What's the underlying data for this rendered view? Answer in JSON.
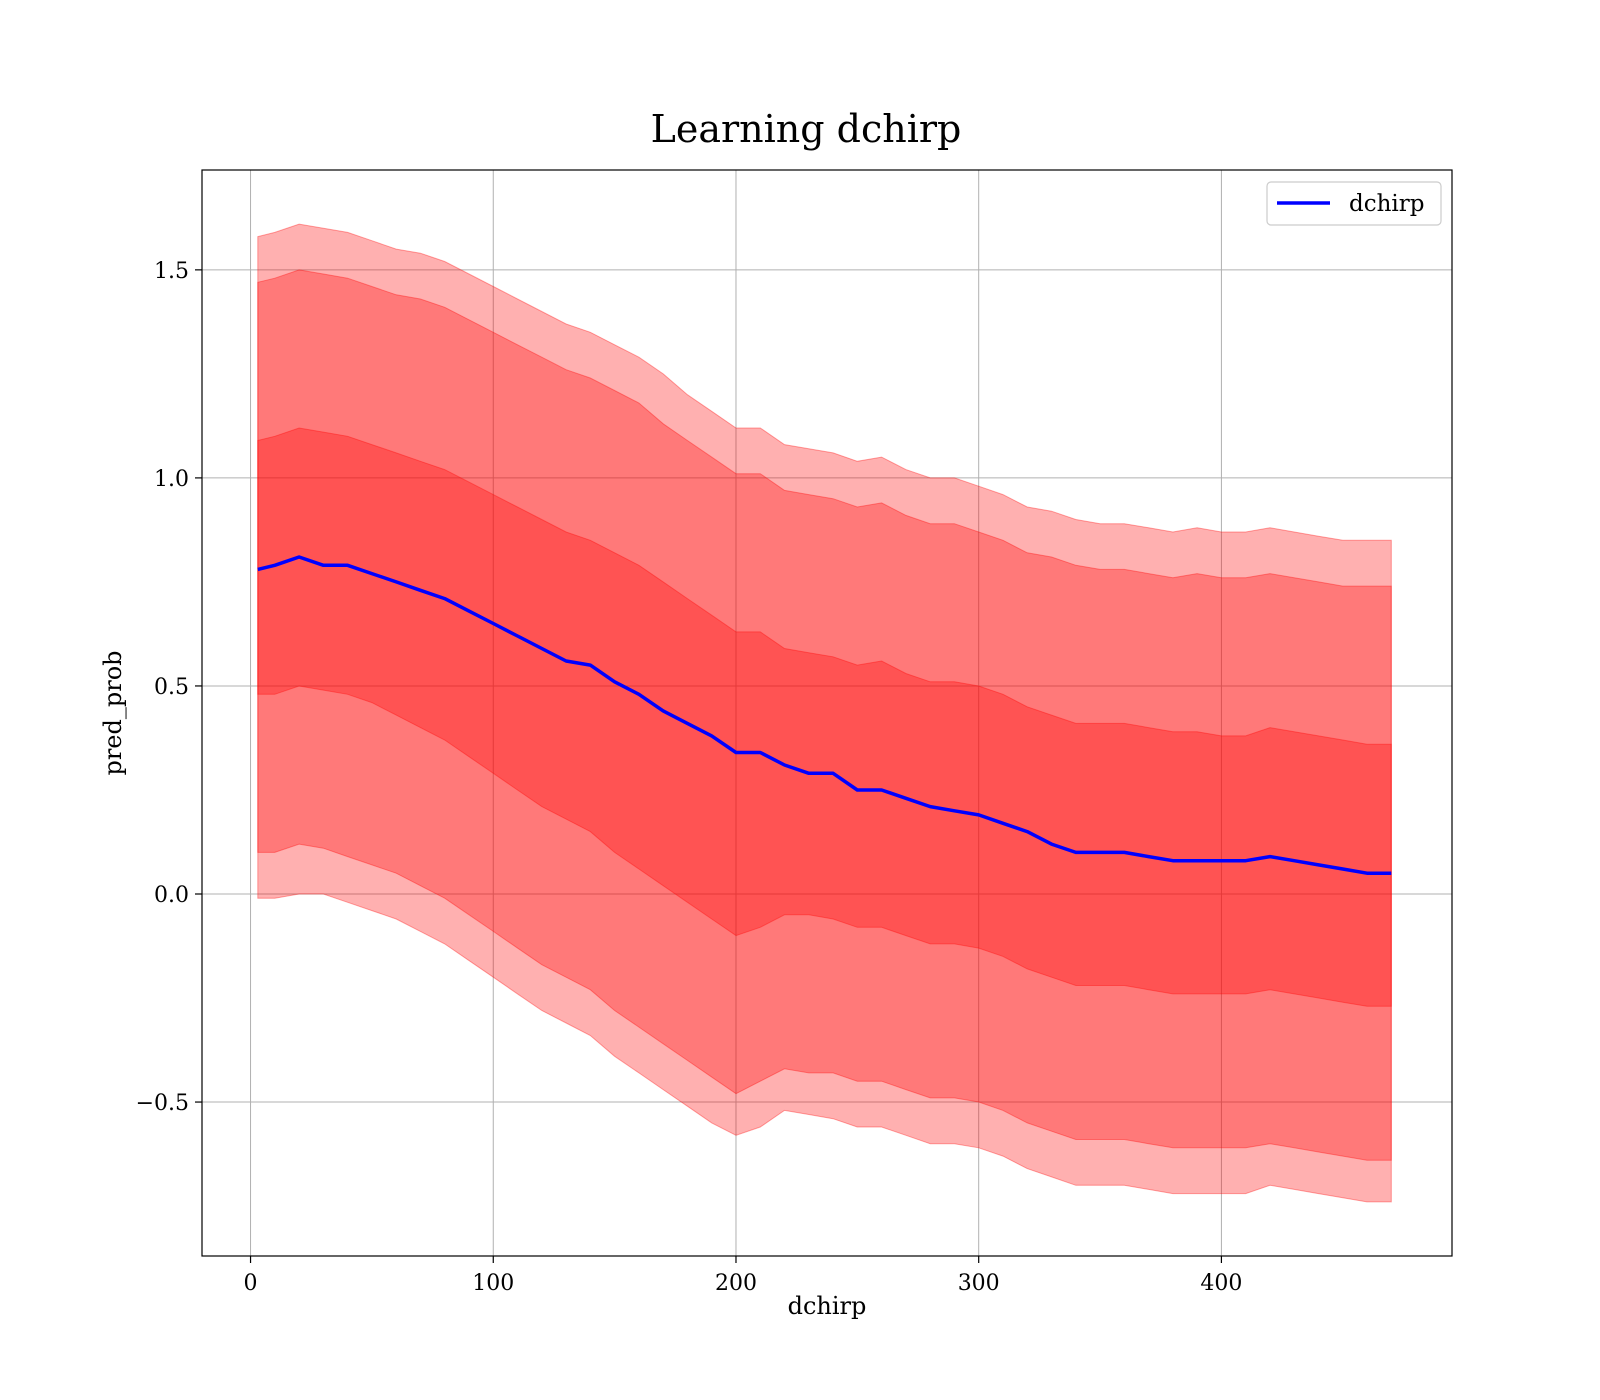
{
  "chart_data": {
    "type": "line",
    "title": "Learning dchirp",
    "xlabel": "dchirp",
    "ylabel": "pred_prob",
    "xlim": [
      -20,
      495
    ],
    "ylim": [
      -0.87,
      1.74
    ],
    "xticks": [
      0,
      100,
      200,
      300,
      400
    ],
    "yticks": [
      -0.5,
      0.0,
      0.5,
      1.0,
      1.5
    ],
    "xtick_labels": [
      "0",
      "100",
      "200",
      "300",
      "400"
    ],
    "ytick_labels": [
      "−0.5",
      "0.0",
      "0.5",
      "1.0",
      "1.5"
    ],
    "grid": true,
    "legend": {
      "position": "top-right",
      "entries": [
        "dchirp"
      ]
    },
    "colors": {
      "line": "#0000ff",
      "band": "#ff0000",
      "band_opacity": 0.31,
      "grid": "#b0b0b0"
    },
    "series": [
      {
        "name": "dchirp",
        "x": [
          3,
          10,
          20,
          30,
          40,
          50,
          60,
          70,
          80,
          90,
          100,
          110,
          120,
          130,
          140,
          150,
          160,
          170,
          180,
          190,
          200,
          210,
          220,
          230,
          240,
          250,
          260,
          270,
          280,
          290,
          300,
          310,
          320,
          330,
          340,
          350,
          360,
          370,
          380,
          390,
          400,
          410,
          420,
          430,
          440,
          450,
          460,
          470
        ],
        "mean": [
          0.78,
          0.79,
          0.81,
          0.79,
          0.79,
          0.77,
          0.75,
          0.73,
          0.71,
          0.68,
          0.65,
          0.62,
          0.59,
          0.56,
          0.55,
          0.51,
          0.48,
          0.44,
          0.41,
          0.38,
          0.34,
          0.34,
          0.31,
          0.29,
          0.29,
          0.25,
          0.25,
          0.23,
          0.21,
          0.2,
          0.19,
          0.17,
          0.15,
          0.12,
          0.1,
          0.1,
          0.1,
          0.09,
          0.08,
          0.08,
          0.08,
          0.08,
          0.09,
          0.08,
          0.07,
          0.06,
          0.05,
          0.05
        ],
        "bands": [
          {
            "lower": [
              -0.01,
              -0.01,
              0.0,
              0.0,
              -0.02,
              -0.04,
              -0.06,
              -0.09,
              -0.12,
              -0.16,
              -0.2,
              -0.24,
              -0.28,
              -0.31,
              -0.34,
              -0.39,
              -0.43,
              -0.47,
              -0.51,
              -0.55,
              -0.58,
              -0.56,
              -0.52,
              -0.53,
              -0.54,
              -0.56,
              -0.56,
              -0.58,
              -0.6,
              -0.6,
              -0.61,
              -0.63,
              -0.66,
              -0.68,
              -0.7,
              -0.7,
              -0.7,
              -0.71,
              -0.72,
              -0.72,
              -0.72,
              -0.72,
              -0.7,
              -0.71,
              -0.72,
              -0.73,
              -0.74,
              -0.74
            ],
            "upper": [
              1.58,
              1.59,
              1.61,
              1.6,
              1.59,
              1.57,
              1.55,
              1.54,
              1.52,
              1.49,
              1.46,
              1.43,
              1.4,
              1.37,
              1.35,
              1.32,
              1.29,
              1.25,
              1.2,
              1.16,
              1.12,
              1.12,
              1.08,
              1.07,
              1.06,
              1.04,
              1.05,
              1.02,
              1.0,
              1.0,
              0.98,
              0.96,
              0.93,
              0.92,
              0.9,
              0.89,
              0.89,
              0.88,
              0.87,
              0.88,
              0.87,
              0.87,
              0.88,
              0.87,
              0.86,
              0.85,
              0.85,
              0.85
            ]
          },
          {
            "lower": [
              0.1,
              0.1,
              0.12,
              0.11,
              0.09,
              0.07,
              0.05,
              0.02,
              -0.01,
              -0.05,
              -0.09,
              -0.13,
              -0.17,
              -0.2,
              -0.23,
              -0.28,
              -0.32,
              -0.36,
              -0.4,
              -0.44,
              -0.48,
              -0.45,
              -0.42,
              -0.43,
              -0.43,
              -0.45,
              -0.45,
              -0.47,
              -0.49,
              -0.49,
              -0.5,
              -0.52,
              -0.55,
              -0.57,
              -0.59,
              -0.59,
              -0.59,
              -0.6,
              -0.61,
              -0.61,
              -0.61,
              -0.61,
              -0.6,
              -0.61,
              -0.62,
              -0.63,
              -0.64,
              -0.64
            ],
            "upper": [
              1.47,
              1.48,
              1.5,
              1.49,
              1.48,
              1.46,
              1.44,
              1.43,
              1.41,
              1.38,
              1.35,
              1.32,
              1.29,
              1.26,
              1.24,
              1.21,
              1.18,
              1.13,
              1.09,
              1.05,
              1.01,
              1.01,
              0.97,
              0.96,
              0.95,
              0.93,
              0.94,
              0.91,
              0.89,
              0.89,
              0.87,
              0.85,
              0.82,
              0.81,
              0.79,
              0.78,
              0.78,
              0.77,
              0.76,
              0.77,
              0.76,
              0.76,
              0.77,
              0.76,
              0.75,
              0.74,
              0.74,
              0.74
            ]
          },
          {
            "lower": [
              0.48,
              0.48,
              0.5,
              0.49,
              0.48,
              0.46,
              0.43,
              0.4,
              0.37,
              0.33,
              0.29,
              0.25,
              0.21,
              0.18,
              0.15,
              0.1,
              0.06,
              0.02,
              -0.02,
              -0.06,
              -0.1,
              -0.08,
              -0.05,
              -0.05,
              -0.06,
              -0.08,
              -0.08,
              -0.1,
              -0.12,
              -0.12,
              -0.13,
              -0.15,
              -0.18,
              -0.2,
              -0.22,
              -0.22,
              -0.22,
              -0.23,
              -0.24,
              -0.24,
              -0.24,
              -0.24,
              -0.23,
              -0.24,
              -0.25,
              -0.26,
              -0.27,
              -0.27
            ],
            "upper": [
              1.09,
              1.1,
              1.12,
              1.11,
              1.1,
              1.08,
              1.06,
              1.04,
              1.02,
              0.99,
              0.96,
              0.93,
              0.9,
              0.87,
              0.85,
              0.82,
              0.79,
              0.75,
              0.71,
              0.67,
              0.63,
              0.63,
              0.59,
              0.58,
              0.57,
              0.55,
              0.56,
              0.53,
              0.51,
              0.51,
              0.5,
              0.48,
              0.45,
              0.43,
              0.41,
              0.41,
              0.41,
              0.4,
              0.39,
              0.39,
              0.38,
              0.38,
              0.4,
              0.39,
              0.38,
              0.37,
              0.36,
              0.36
            ]
          }
        ]
      }
    ]
  }
}
